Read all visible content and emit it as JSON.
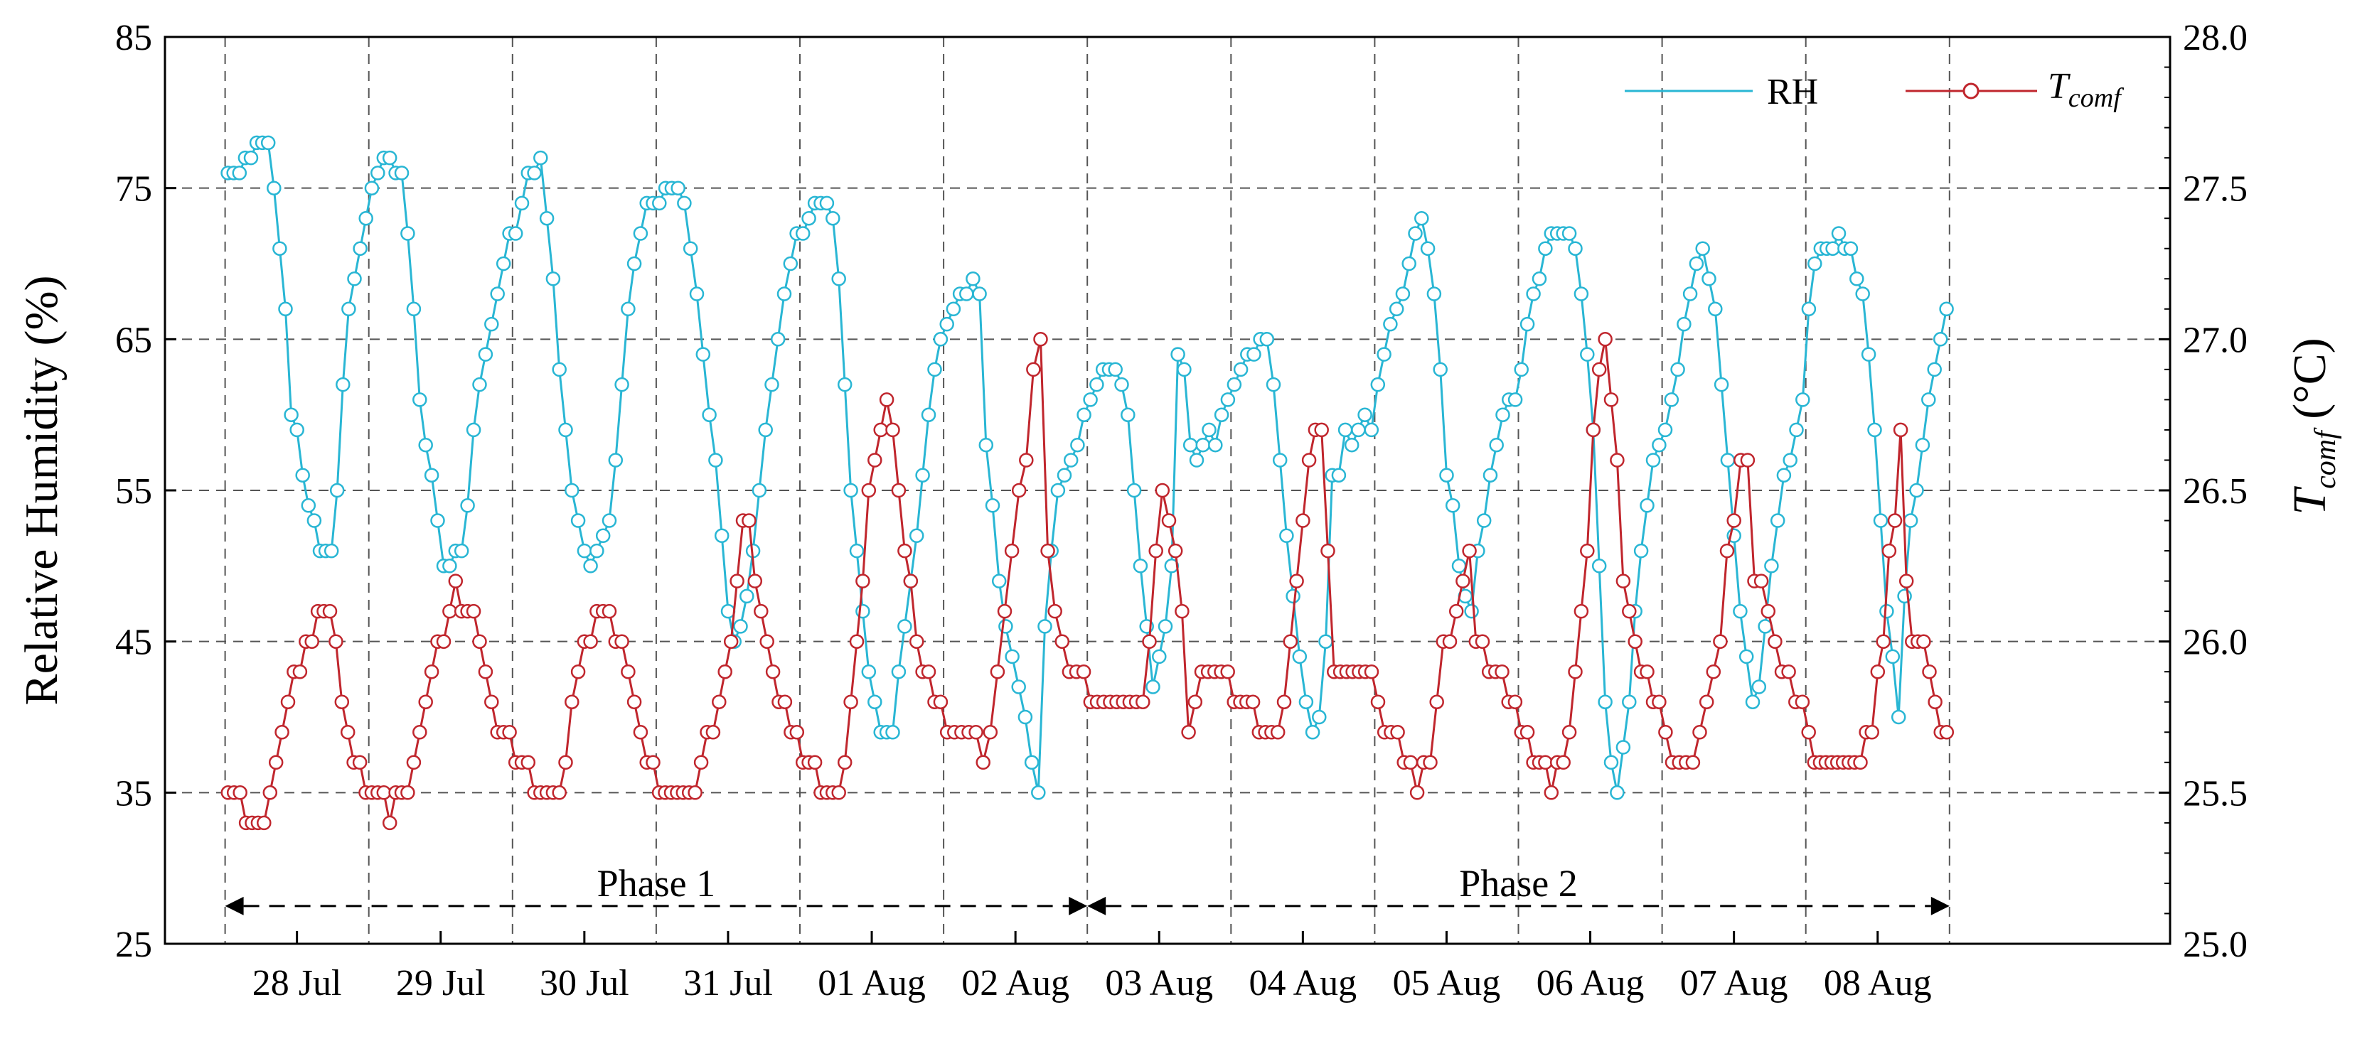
{
  "chart_data": {
    "type": "line",
    "xlabel": "",
    "ylabel": "Relative Humidity (%)",
    "y2label_main": "T",
    "y2label_sub": "comf",
    "y2label_unit": " (°C)",
    "ylim": [
      25,
      85
    ],
    "y2lim": [
      25.0,
      28.0
    ],
    "yticks": [
      25,
      35,
      45,
      55,
      65,
      75,
      85
    ],
    "y2ticks": [
      "25.0",
      "25.5",
      "26.0",
      "26.5",
      "27.0",
      "27.5",
      "28.0"
    ],
    "y2tick_values": [
      25.0,
      25.5,
      26.0,
      26.5,
      27.0,
      27.5,
      28.0
    ],
    "grid": true,
    "legend_position": "top-right",
    "x_range": [
      0,
      12
    ],
    "day_labels": [
      "28 Jul",
      "29 Jul",
      "30 Jul",
      "31 Jul",
      "01 Aug",
      "02 Aug",
      "03 Aug",
      "04 Aug",
      "05 Aug",
      "06 Aug",
      "07 Aug",
      "08 Aug"
    ],
    "phases": [
      {
        "label": "Phase 1",
        "start_day": 0.5,
        "end_day": 6.5
      },
      {
        "label": "Phase 2",
        "start_day": 6.5,
        "end_day": 12.5
      }
    ],
    "series": [
      {
        "name": "RH",
        "axis": "left",
        "color": "#29b6d4",
        "marker": "circle",
        "values_per_day": [
          [
            76,
            76,
            76,
            77,
            77,
            78,
            78,
            78,
            75,
            71,
            67,
            60,
            59,
            56,
            54,
            53,
            51,
            51,
            51,
            55,
            62,
            67,
            69,
            71,
            73
          ],
          [
            75,
            76,
            77,
            77,
            76,
            76,
            72,
            67,
            61,
            58,
            56,
            53,
            50,
            50,
            51,
            51,
            54,
            59,
            62,
            64,
            66,
            68,
            70,
            72
          ],
          [
            72,
            74,
            76,
            76,
            77,
            73,
            69,
            63,
            59,
            55,
            53,
            51,
            50,
            51,
            52,
            53,
            57,
            62,
            67,
            70,
            72,
            74,
            74
          ],
          [
            74,
            75,
            75,
            75,
            74,
            71,
            68,
            64,
            60,
            57,
            52,
            47,
            45,
            46,
            48,
            51,
            55,
            59,
            62,
            65,
            68,
            70,
            72
          ],
          [
            72,
            73,
            74,
            74,
            74,
            73,
            69,
            62,
            55,
            51,
            47,
            43,
            41,
            39,
            39,
            39,
            43,
            46,
            49,
            52,
            56,
            60,
            63,
            65
          ],
          [
            66,
            67,
            68,
            68,
            69,
            68,
            58,
            54,
            49,
            46,
            44,
            42,
            40,
            37,
            35,
            46,
            51,
            55,
            56,
            57,
            58,
            60
          ],
          [
            61,
            62,
            63,
            63,
            63,
            62,
            60,
            55,
            50,
            46,
            42,
            44,
            46,
            50,
            64,
            63,
            58,
            57,
            58,
            59,
            58,
            60,
            61
          ],
          [
            62,
            63,
            64,
            64,
            65,
            65,
            62,
            57,
            52,
            48,
            44,
            41,
            39,
            40,
            45,
            56,
            56,
            59,
            58,
            59,
            60,
            59
          ],
          [
            62,
            64,
            66,
            67,
            68,
            70,
            72,
            73,
            71,
            68,
            63,
            56,
            54,
            50,
            48,
            47,
            51,
            53,
            56,
            58,
            60,
            61,
            61
          ],
          [
            63,
            66,
            68,
            69,
            71,
            72,
            72,
            72,
            72,
            71,
            68,
            64,
            59,
            50,
            41,
            37,
            35,
            38,
            41,
            47,
            51,
            54,
            57,
            58
          ],
          [
            59,
            61,
            63,
            66,
            68,
            70,
            71,
            69,
            67,
            62,
            57,
            52,
            47,
            44,
            41,
            42,
            46,
            50,
            53,
            56,
            57,
            59,
            61
          ],
          [
            67,
            70,
            71,
            71,
            71,
            72,
            71,
            71,
            69,
            68,
            64,
            59,
            53,
            47,
            44,
            40,
            48,
            53,
            55,
            58,
            61,
            63,
            65,
            67
          ]
        ]
      },
      {
        "name": "T",
        "legend_sub": "comf",
        "axis": "right",
        "color": "#c0262d",
        "marker": "open-circle",
        "values_per_day": [
          [
            25.5,
            25.5,
            25.5,
            25.4,
            25.4,
            25.4,
            25.4,
            25.5,
            25.6,
            25.7,
            25.8,
            25.9,
            25.9,
            26.0,
            26.0,
            26.1,
            26.1,
            26.1,
            26.0,
            25.8,
            25.7,
            25.6,
            25.6,
            25.5
          ],
          [
            25.5,
            25.5,
            25.5,
            25.4,
            25.5,
            25.5,
            25.5,
            25.6,
            25.7,
            25.8,
            25.9,
            26.0,
            26.0,
            26.1,
            26.2,
            26.1,
            26.1,
            26.1,
            26.0,
            25.9,
            25.8,
            25.7,
            25.7,
            25.7
          ],
          [
            25.6,
            25.6,
            25.6,
            25.5,
            25.5,
            25.5,
            25.5,
            25.5,
            25.6,
            25.8,
            25.9,
            26.0,
            26.0,
            26.1,
            26.1,
            26.1,
            26.0,
            26.0,
            25.9,
            25.8,
            25.7,
            25.6,
            25.6
          ],
          [
            25.5,
            25.5,
            25.5,
            25.5,
            25.5,
            25.5,
            25.5,
            25.6,
            25.7,
            25.7,
            25.8,
            25.9,
            26.0,
            26.2,
            26.4,
            26.4,
            26.2,
            26.1,
            26.0,
            25.9,
            25.8,
            25.8,
            25.7,
            25.7
          ],
          [
            25.6,
            25.6,
            25.6,
            25.5,
            25.5,
            25.5,
            25.5,
            25.6,
            25.8,
            26.0,
            26.2,
            26.5,
            26.6,
            26.7,
            26.8,
            26.7,
            26.5,
            26.3,
            26.2,
            26.0,
            25.9,
            25.9,
            25.8,
            25.8
          ],
          [
            25.7,
            25.7,
            25.7,
            25.7,
            25.7,
            25.6,
            25.7,
            25.9,
            26.1,
            26.3,
            26.5,
            26.6,
            26.9,
            27.0,
            26.3,
            26.1,
            26.0,
            25.9,
            25.9,
            25.9
          ],
          [
            25.8,
            25.8,
            25.8,
            25.8,
            25.8,
            25.8,
            25.8,
            25.8,
            25.8,
            26.0,
            26.3,
            26.5,
            26.4,
            26.3,
            26.1,
            25.7,
            25.8,
            25.9,
            25.9,
            25.9,
            25.9,
            25.9
          ],
          [
            25.8,
            25.8,
            25.8,
            25.8,
            25.7,
            25.7,
            25.7,
            25.7,
            25.8,
            26.0,
            26.2,
            26.4,
            26.6,
            26.7,
            26.7,
            26.3,
            25.9,
            25.9,
            25.9,
            25.9,
            25.9,
            25.9,
            25.9
          ],
          [
            25.8,
            25.7,
            25.7,
            25.7,
            25.6,
            25.6,
            25.5,
            25.6,
            25.6,
            25.8,
            26.0,
            26.0,
            26.1,
            26.2,
            26.3,
            26.0,
            26.0,
            25.9,
            25.9,
            25.9,
            25.8,
            25.8
          ],
          [
            25.7,
            25.7,
            25.6,
            25.6,
            25.6,
            25.5,
            25.6,
            25.6,
            25.7,
            25.9,
            26.1,
            26.3,
            26.7,
            26.9,
            27.0,
            26.8,
            26.6,
            26.2,
            26.1,
            26.0,
            25.9,
            25.9,
            25.8,
            25.8
          ],
          [
            25.7,
            25.6,
            25.6,
            25.6,
            25.6,
            25.7,
            25.8,
            25.9,
            26.0,
            26.3,
            26.4,
            26.6,
            26.6,
            26.2,
            26.2,
            26.1,
            26.0,
            25.9,
            25.9,
            25.8,
            25.8
          ],
          [
            25.7,
            25.6,
            25.6,
            25.6,
            25.6,
            25.6,
            25.6,
            25.6,
            25.6,
            25.6,
            25.7,
            25.7,
            25.9,
            26.0,
            26.3,
            26.4,
            26.7,
            26.2,
            26.0,
            26.0,
            26.0,
            25.9,
            25.8,
            25.7,
            25.7
          ]
        ]
      }
    ]
  }
}
